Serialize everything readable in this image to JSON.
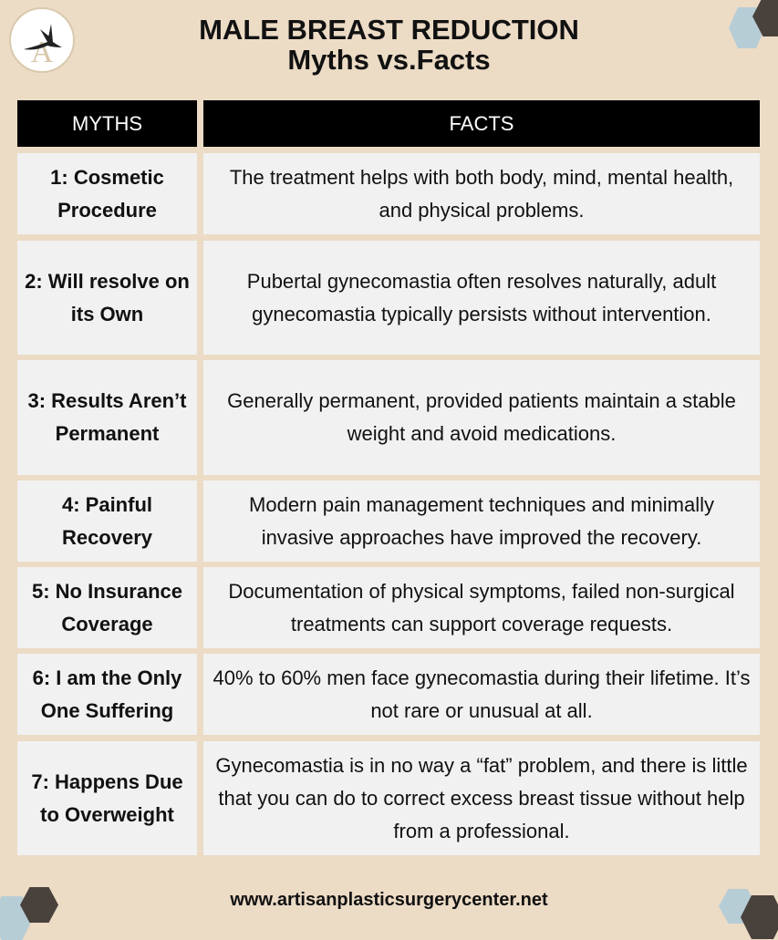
{
  "logo": {
    "icon": "artisan-logo-bird-A",
    "text": "A"
  },
  "title": {
    "line1": "MALE BREAST REDUCTION",
    "line2": "Myths vs.Facts"
  },
  "table": {
    "headers": [
      "MYTHS",
      "FACTS"
    ],
    "rows": [
      {
        "myth": "1: Cosmetic Procedure",
        "fact": "The treatment helps with both body, mind, mental health, and physical problems."
      },
      {
        "myth": "2: Will resolve on its Own",
        "fact": "Pubertal gynecomastia often resolves naturally, adult gynecomastia typically persists without intervention."
      },
      {
        "myth": "3: Results Aren’t Permanent",
        "fact": "Generally permanent, provided patients maintain a stable weight and avoid medications."
      },
      {
        "myth": "4: Painful Recovery",
        "fact": "Modern pain management techniques and minimally invasive approaches have improved the recovery."
      },
      {
        "myth": "5: No Insurance Coverage",
        "fact": "Documentation of physical symptoms, failed non-surgical treatments can support coverage requests."
      },
      {
        "myth": "6: I am the Only One Suffering",
        "fact": "40% to 60% men face gynecomastia during their lifetime. It’s not rare or unusual at all."
      },
      {
        "myth": "7: Happens Due to Overweight",
        "fact": "Gynecomastia is in no way a “fat” problem, and there is little that you can do to correct excess breast tissue without help from a professional."
      }
    ]
  },
  "footer": {
    "url": "www.artisanplasticsurgerycenter.net"
  },
  "colors": {
    "background": "#ecdbc5",
    "header": "#000000",
    "cell": "#f1f1f1",
    "hex_blue": "#b7cdd6",
    "hex_dark": "#48413c"
  }
}
